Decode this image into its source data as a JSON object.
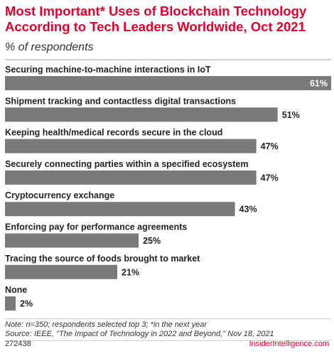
{
  "title": "Most Important* Uses of Blockchain Technology According to Tech Leaders Worldwide, Oct 2021",
  "subtitle": "% of respondents",
  "note": "Note: n=350; respondents selected top 3; *in the next year",
  "source": "Source: IEEE, \"The Impact of Technology in 2022 and Beyond,\" Nov 18, 2021",
  "chart_id": "272438",
  "brand": "InsiderIntelligence.com",
  "colors": {
    "bar": "#7a7a7a",
    "title": "#e4002b",
    "brand": "#e4002b"
  },
  "chart_data": {
    "type": "bar",
    "orientation": "horizontal",
    "categories": [
      "Securing machine-to-machine interactions in IoT",
      "Shipment tracking and contactless digital transactions",
      "Keeping health/medical records secure in the cloud",
      "Securely connecting parties within a specified ecosystem",
      "Cryptocurrency exchange",
      "Enforcing pay for performance agreements",
      "Tracing the source of foods brought to market",
      "None"
    ],
    "values": [
      61,
      51,
      47,
      47,
      43,
      25,
      21,
      2
    ],
    "value_labels": [
      "61%",
      "51%",
      "47%",
      "47%",
      "43%",
      "25%",
      "21%",
      "2%"
    ],
    "unit": "%",
    "xlim": [
      0,
      61
    ],
    "grid": false,
    "legend": "none"
  }
}
